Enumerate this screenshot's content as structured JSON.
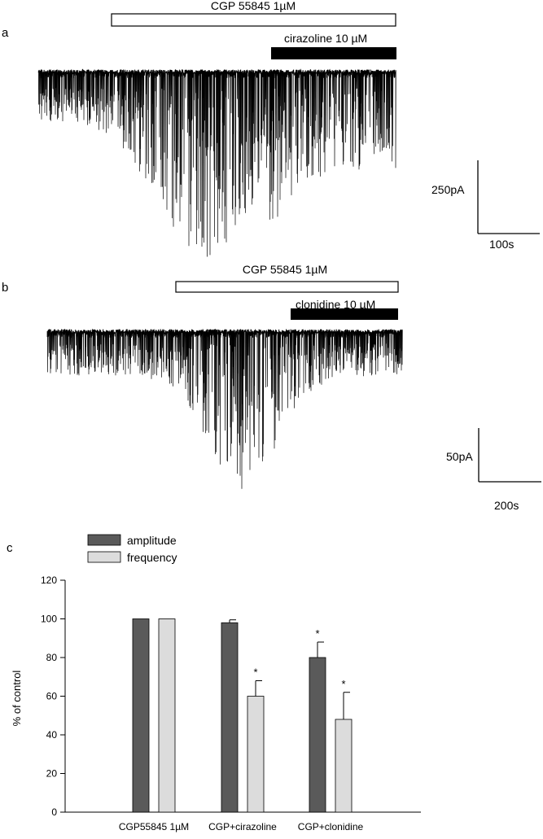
{
  "chart_data": [
    {
      "type": "trace",
      "panel_label": "a",
      "drug_bars": [
        {
          "label": "CGP 55845 1µM",
          "fill": "#ffffff"
        },
        {
          "label": "cirazoline 10 µM",
          "fill": "#000000"
        }
      ],
      "scale_bar": {
        "y_label": "250pA",
        "x_label": "100s"
      }
    },
    {
      "type": "trace",
      "panel_label": "b",
      "drug_bars": [
        {
          "label": "CGP 55845 1µM",
          "fill": "#ffffff"
        },
        {
          "label": "clonidine 10 µM",
          "fill": "#000000"
        }
      ],
      "scale_bar": {
        "y_label": "50pA",
        "x_label": "200s"
      }
    },
    {
      "type": "bar",
      "panel_label": "c",
      "categories": [
        "CGP55845 1µM",
        "CGP+cirazoline",
        "CGP+clonidine"
      ],
      "series": [
        {
          "name": "amplitude",
          "color": "#5a5a5a",
          "values": [
            100,
            98,
            80
          ],
          "errors": [
            0,
            1.5,
            8
          ],
          "significant": [
            false,
            false,
            true
          ]
        },
        {
          "name": "frequency",
          "color": "#dcdcdc",
          "values": [
            100,
            60,
            48
          ],
          "errors": [
            0,
            8,
            14
          ],
          "significant": [
            false,
            true,
            true
          ]
        }
      ],
      "ylabel": "% of control",
      "ylim": [
        0,
        120
      ],
      "yticks": [
        0,
        20,
        40,
        60,
        80,
        100,
        120
      ],
      "significance_marker": "*",
      "legend_position": "top-left"
    }
  ]
}
